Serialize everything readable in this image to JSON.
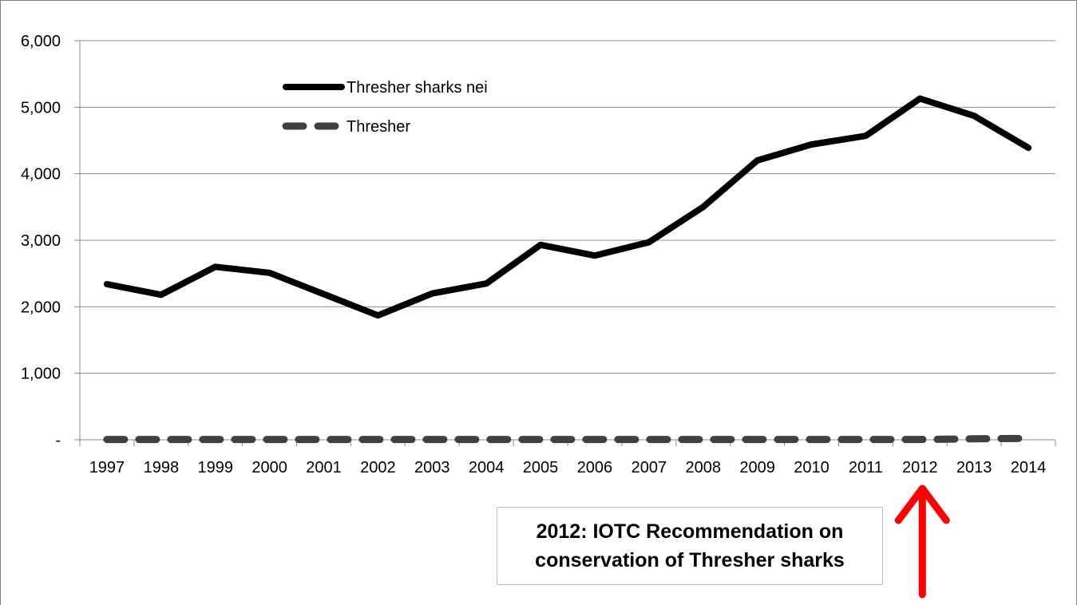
{
  "chart_data": {
    "type": "line",
    "title": "",
    "xlabel": "",
    "ylabel": "",
    "categories": [
      "1997",
      "1998",
      "1999",
      "2000",
      "2001",
      "2002",
      "2003",
      "2004",
      "2005",
      "2006",
      "2007",
      "2008",
      "2009",
      "2010",
      "2011",
      "2012",
      "2013",
      "2014"
    ],
    "ylim": [
      0,
      6000
    ],
    "yticks": [
      0,
      1000,
      2000,
      3000,
      4000,
      5000,
      6000
    ],
    "ytick_labels": [
      "-",
      "1,000",
      "2,000",
      "3,000",
      "4,000",
      "5,000",
      "6,000"
    ],
    "grid": true,
    "legend_position": "top-left inside plot",
    "series": [
      {
        "name": "Thresher sharks nei",
        "color": "#000000",
        "style": "solid",
        "values": [
          2340,
          2180,
          2600,
          2510,
          2190,
          1870,
          2200,
          2350,
          2930,
          2770,
          2970,
          3500,
          4200,
          4440,
          4570,
          5130,
          4870,
          4390
        ]
      },
      {
        "name": "Thresher",
        "color": "#404040",
        "style": "dashed",
        "values": [
          5,
          5,
          5,
          5,
          5,
          5,
          5,
          5,
          5,
          5,
          5,
          5,
          5,
          5,
          5,
          5,
          15,
          20
        ]
      }
    ],
    "annotations": [
      {
        "text": "2012: IOTC Recommendation on conservation of Thresher sharks",
        "target_category": "2012",
        "arrow_color": "#ff0000"
      }
    ]
  }
}
